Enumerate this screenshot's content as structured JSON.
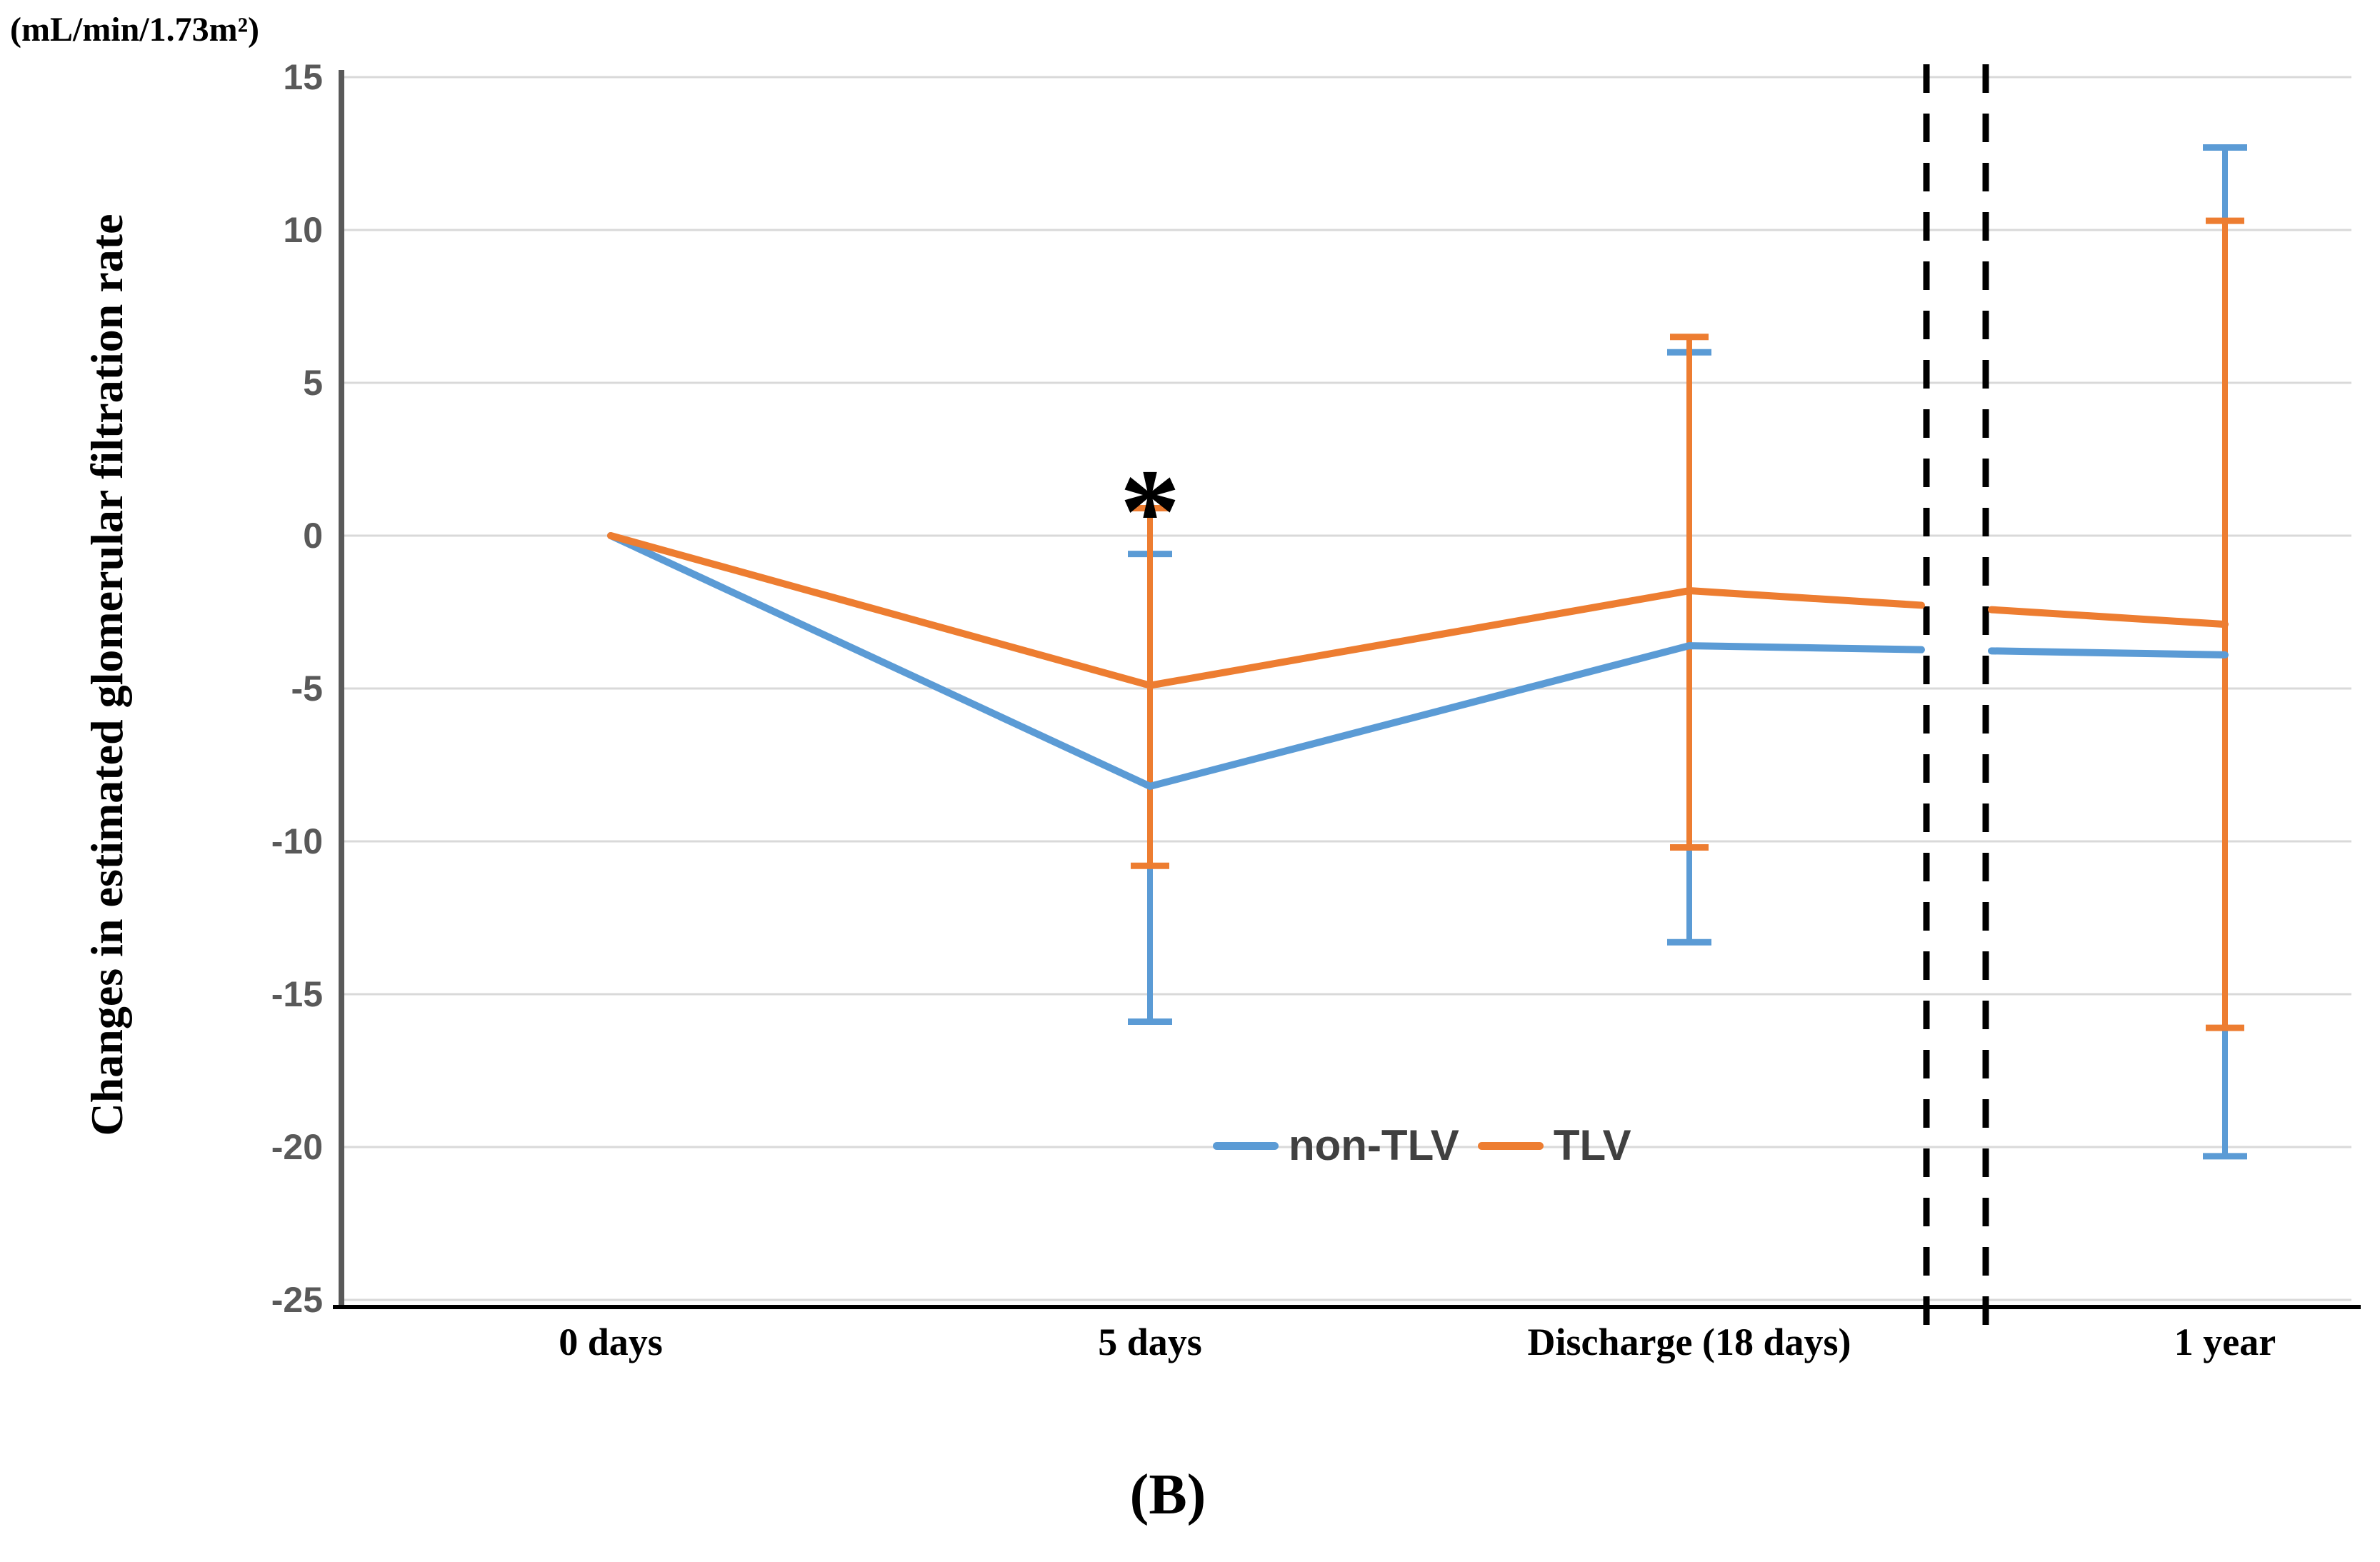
{
  "figure": {
    "unit_label": "(mL/min/1.73m²)",
    "y_axis_title": "Changes in estimated glomerular filtration rate",
    "panel_label": "(B)"
  },
  "legend": {
    "items": [
      {
        "label": "non-TLV",
        "color": "#5B9BD5"
      },
      {
        "label": "TLV",
        "color": "#ED7D31"
      }
    ]
  },
  "chart_data": {
    "type": "line",
    "title": "",
    "xlabel": "",
    "ylabel": "Changes in estimated glomerular filtration rate (mL/min/1.73m²)",
    "categories": [
      "0 days",
      "5 days",
      "Discharge (18 days)",
      "1 year"
    ],
    "ylim": [
      -25,
      15
    ],
    "yticks": [
      15,
      10,
      5,
      0,
      -5,
      -10,
      -15,
      -20,
      -25
    ],
    "ytick_labels": [
      "15",
      "10",
      "5",
      "0",
      "-5",
      "-10",
      "-15",
      "-20",
      "-25"
    ],
    "grid": true,
    "legend_position": "inside-bottom-center",
    "axis_break": {
      "between": [
        "Discharge (18 days)",
        "1 year"
      ],
      "style": "two-dashed-vertical-lines"
    },
    "series": [
      {
        "name": "non-TLV",
        "color": "#5B9BD5",
        "values": [
          0,
          -8.2,
          -3.6,
          -3.9
        ],
        "error_high": [
          null,
          -0.6,
          6.0,
          12.7
        ],
        "error_low": [
          null,
          -15.9,
          -13.3,
          -20.3
        ]
      },
      {
        "name": "TLV",
        "color": "#ED7D31",
        "values": [
          0,
          -4.9,
          -1.8,
          -2.9
        ],
        "error_high": [
          null,
          0.9,
          6.5,
          10.3
        ],
        "error_low": [
          null,
          -10.8,
          -10.2,
          -16.1
        ]
      }
    ],
    "annotations": [
      {
        "text": "*",
        "category": "5 days",
        "y": 2.5
      }
    ]
  },
  "colors": {
    "background": "#FFFFFF",
    "gridline": "#D9D9D9",
    "y_axis_line": "#595959",
    "x_axis_line": "#000000",
    "tick_label": "#595959",
    "x_label": "#000000",
    "legend_text": "#404040",
    "break_line": "#000000"
  }
}
